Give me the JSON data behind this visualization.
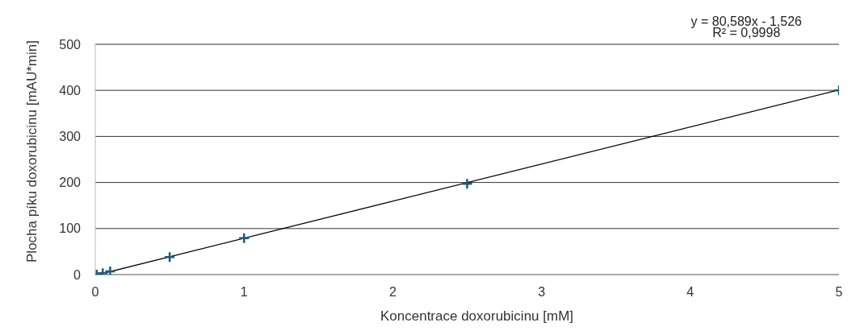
{
  "chart_data": {
    "type": "scatter",
    "xlabel": "Koncentrace doxorubicinu [mM]",
    "ylabel": "Plocha píku doxorubicinu [mAU*min]",
    "annotations": [
      "y = 80,589x - 1,526",
      "R² = 0,9998"
    ],
    "series": [
      {
        "color": "#1d5a7a",
        "marker": "cross",
        "x": [
          0.01,
          0.05,
          0.1,
          0.5,
          1,
          2.5,
          5
        ],
        "values": [
          0,
          3,
          7,
          38,
          79,
          197,
          400
        ]
      },
      {
        "type": "line",
        "color": "#000000",
        "marker": "none",
        "x": [
          0.02,
          5
        ],
        "values": [
          0,
          401
        ]
      }
    ],
    "xlim": [
      0,
      5
    ],
    "xticks": [
      0,
      1,
      2,
      3,
      4,
      5
    ],
    "ylim": [
      0,
      500
    ],
    "yticks": [
      0,
      100,
      200,
      300,
      400,
      500
    ],
    "grid": "y"
  }
}
